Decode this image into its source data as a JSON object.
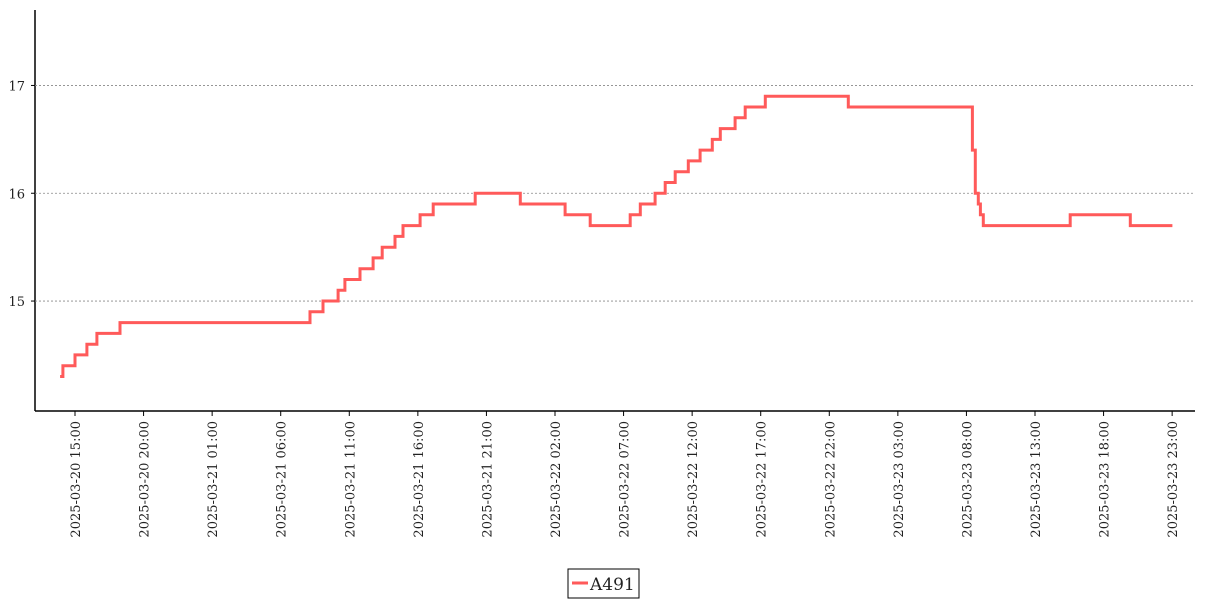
{
  "chart_data": {
    "type": "line",
    "drawstyle": "steps-post",
    "xlim": [
      "2025-03-20 12:05",
      "2025-03-24 00:40"
    ],
    "xticks": [
      "2025-03-20 15:00",
      "2025-03-20 20:00",
      "2025-03-21 01:00",
      "2025-03-21 06:00",
      "2025-03-21 11:00",
      "2025-03-21 16:00",
      "2025-03-21 21:00",
      "2025-03-22 02:00",
      "2025-03-22 07:00",
      "2025-03-22 12:00",
      "2025-03-22 17:00",
      "2025-03-22 22:00",
      "2025-03-23 03:00",
      "2025-03-23 08:00",
      "2025-03-23 13:00",
      "2025-03-23 18:00",
      "2025-03-23 23:00"
    ],
    "ylim": [
      13.98,
      17.7
    ],
    "yticks": [
      15,
      16,
      17
    ],
    "grid": true,
    "legend": "bottom",
    "x": [
      "2025-03-20 13:55",
      "2025-03-20 14:07",
      "2025-03-20 15:00",
      "2025-03-20 15:52",
      "2025-03-20 16:36",
      "2025-03-20 18:17",
      "2025-03-21 08:08",
      "2025-03-21 09:05",
      "2025-03-21 10:11",
      "2025-03-21 10:41",
      "2025-03-21 11:47",
      "2025-03-21 12:44",
      "2025-03-21 13:24",
      "2025-03-21 14:20",
      "2025-03-21 14:55",
      "2025-03-21 16:10",
      "2025-03-21 17:07",
      "2025-03-21 20:11",
      "2025-03-21 23:28",
      "2025-03-22 02:44",
      "2025-03-22 04:34",
      "2025-03-22 07:29",
      "2025-03-22 08:13",
      "2025-03-22 09:18",
      "2025-03-22 10:02",
      "2025-03-22 10:46",
      "2025-03-22 11:43",
      "2025-03-22 12:35",
      "2025-03-22 13:28",
      "2025-03-22 14:03",
      "2025-03-22 15:08",
      "2025-03-22 15:52",
      "2025-03-22 17:20",
      "2025-03-22 23:23",
      "2025-03-23 08:26",
      "2025-03-23 08:39",
      "2025-03-23 08:52",
      "2025-03-23 09:01",
      "2025-03-23 09:14",
      "2025-03-23 09:35",
      "2025-03-23 15:34",
      "2025-03-23 19:57",
      "2025-03-23 23:01"
    ],
    "series": [
      {
        "name": "A491",
        "color": "#ff5a5a",
        "values": [
          14.3,
          14.4,
          14.5,
          14.6,
          14.7,
          14.8,
          14.9,
          15.0,
          15.1,
          15.2,
          15.3,
          15.4,
          15.5,
          15.6,
          15.7,
          15.8,
          15.9,
          16.0,
          15.9,
          15.8,
          15.7,
          15.8,
          15.9,
          16.0,
          16.1,
          16.2,
          16.3,
          16.4,
          16.5,
          16.6,
          16.7,
          16.8,
          16.9,
          16.8,
          16.4,
          16.0,
          15.9,
          15.8,
          15.7,
          15.7,
          15.8,
          15.7,
          15.7
        ]
      }
    ]
  }
}
